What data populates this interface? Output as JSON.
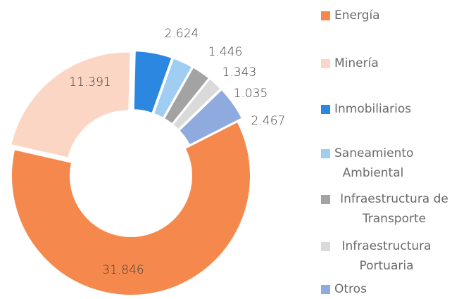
{
  "chart_data": {
    "type": "donut",
    "categories": [
      "Energía",
      "Minería",
      "Inmobiliarios",
      "Saneamiento Ambiental",
      "Infraestructura de Transporte",
      "Infraestructura Portuaria",
      "Otros"
    ],
    "values": [
      31846,
      11391,
      2624,
      1446,
      1343,
      1035,
      2467
    ],
    "value_labels": [
      "31.846",
      "11.391",
      "2.624",
      "1.446",
      "1.343",
      "1.035",
      "2.467"
    ],
    "colors": [
      "#f5894d",
      "#fbd6c4",
      "#2c87e0",
      "#a0cdf2",
      "#a3a3a3",
      "#dadada",
      "#8faade"
    ],
    "legend": "right"
  }
}
